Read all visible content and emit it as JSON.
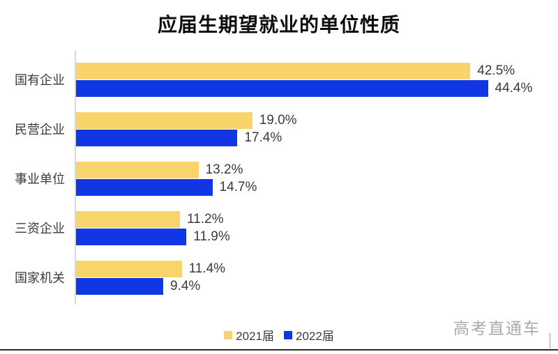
{
  "title": "应届生期望就业的单位性质",
  "watermark": "高考直通车",
  "chart_data": {
    "type": "bar",
    "orientation": "horizontal",
    "title": "应届生期望就业的单位性质",
    "categories": [
      "国有企业",
      "民营企业",
      "事业单位",
      "三资企业",
      "国家机关"
    ],
    "series": [
      {
        "name": "2021届",
        "color": "#F8D46A",
        "values": [
          42.5,
          19.0,
          13.2,
          11.2,
          11.4
        ],
        "labels": [
          "42.5%",
          "19.0%",
          "13.2%",
          "11.2%",
          "11.4%"
        ]
      },
      {
        "name": "2022届",
        "color": "#1136E4",
        "values": [
          44.4,
          17.4,
          14.7,
          11.9,
          9.4
        ],
        "labels": [
          "44.4%",
          "17.4%",
          "14.7%",
          "11.9%",
          "9.4%"
        ]
      }
    ],
    "xlim": [
      0,
      50
    ],
    "grid": false,
    "legend_position": "bottom",
    "value_labels": true
  },
  "colors": {
    "series_2021": "#F8D46A",
    "series_2022": "#1136E4",
    "axis_line": "#d8d8d8",
    "text": "#3a3a3a",
    "title_text": "#0d0d0d",
    "watermark_text": "#aaaaaa",
    "bottom_rule": "#2b2b2b",
    "background": "#ffffff"
  }
}
